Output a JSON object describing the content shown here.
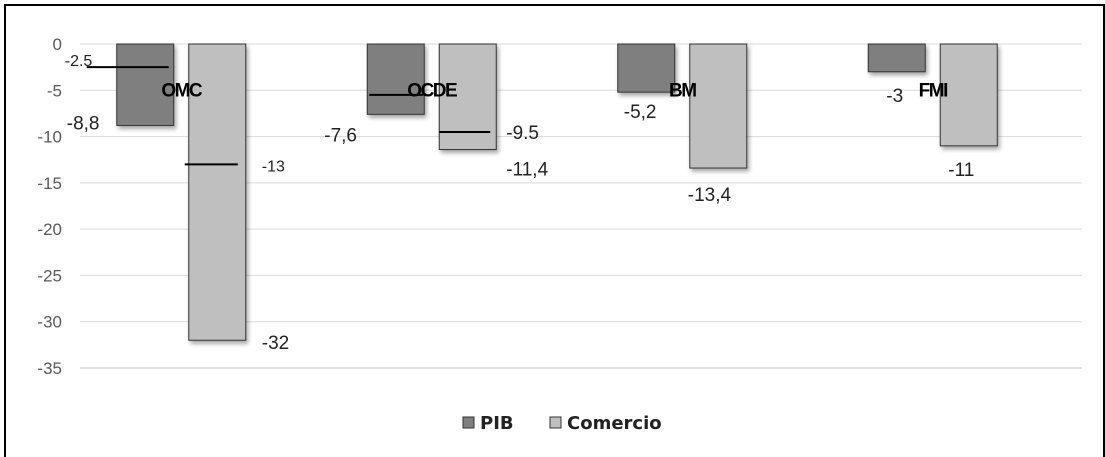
{
  "chart_data": {
    "type": "bar",
    "categories": [
      "OMC",
      "OCDE",
      "BM",
      "FMI"
    ],
    "series": [
      {
        "name": "PIB",
        "values": [
          -8.8,
          -7.6,
          -5.2,
          -3
        ],
        "labels": [
          "-8,8",
          "-7,6",
          "-5,2",
          "-3"
        ],
        "color": "#7f7f7f"
      },
      {
        "name": "Comercio",
        "values": [
          -32,
          -11.4,
          -13.4,
          -11
        ],
        "labels": [
          "-32",
          "-11,4",
          "-13,4",
          "-11"
        ],
        "color": "#bfbfbf"
      }
    ],
    "markers": [
      {
        "category": "OMC",
        "series": "PIB",
        "value": -2.5,
        "label": "-2.5"
      },
      {
        "category": "OMC",
        "series": "Comercio",
        "value": -13,
        "label": "-13"
      },
      {
        "category": "OCDE",
        "series": "PIB",
        "value": -5.5,
        "label": ""
      },
      {
        "category": "OCDE",
        "series": "Comercio",
        "value": -9.5,
        "label": "-9.5"
      }
    ],
    "ylim": [
      -35,
      0
    ],
    "yticks": [
      0,
      -5,
      -10,
      -15,
      -20,
      -25,
      -30,
      -35
    ],
    "ytick_labels": [
      "0",
      "-5",
      "-10",
      "-15",
      "-20",
      "-25",
      "-30",
      "-35"
    ],
    "grid": true,
    "legend_position": "bottom",
    "title": "",
    "xlabel": "",
    "ylabel": ""
  }
}
